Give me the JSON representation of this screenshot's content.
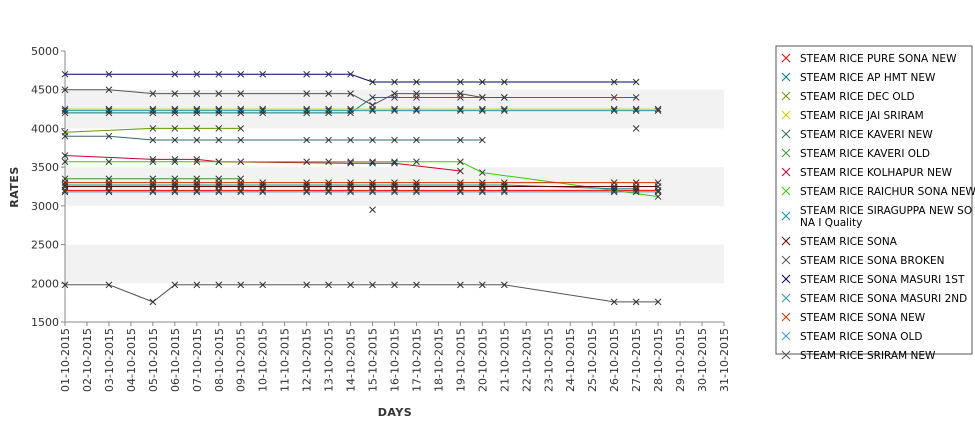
{
  "chart_data": {
    "type": "line",
    "title": "",
    "xlabel": "DAYS",
    "ylabel": "RATES",
    "ylim": [
      1500,
      5000
    ],
    "y_ticks": [
      1500,
      2000,
      2500,
      3000,
      3500,
      4000,
      4500,
      5000
    ],
    "grid": "alternating horizontal bands",
    "legend_position": "right",
    "categories": [
      "01-10-2015",
      "02-10-2015",
      "03-10-2015",
      "04-10-2015",
      "05-10-2015",
      "06-10-2015",
      "07-10-2015",
      "08-10-2015",
      "09-10-2015",
      "10-10-2015",
      "11-10-2015",
      "12-10-2015",
      "13-10-2015",
      "14-10-2015",
      "15-10-2015",
      "16-10-2015",
      "17-10-2015",
      "18-10-2015",
      "19-10-2015",
      "20-10-2015",
      "21-10-2015",
      "22-10-2015",
      "23-10-2015",
      "24-10-2015",
      "25-10-2015",
      "26-10-2015",
      "27-10-2015",
      "28-10-2015",
      "29-10-2015",
      "30-10-2015",
      "31-10-2015"
    ],
    "series": [
      {
        "name": " STEAM RICE PURE SONA NEW",
        "color": "#ff0000",
        "points": [
          [
            0,
            3200
          ],
          [
            2,
            3200
          ],
          [
            4,
            3200
          ],
          [
            5,
            3200
          ],
          [
            6,
            3200
          ],
          [
            7,
            3200
          ],
          [
            8,
            3200
          ],
          [
            9,
            3200
          ],
          [
            11,
            3200
          ],
          [
            12,
            3200
          ],
          [
            13,
            3200
          ],
          [
            14,
            3200
          ],
          [
            15,
            3200
          ],
          [
            16,
            3200
          ],
          [
            18,
            3200
          ],
          [
            19,
            3200
          ],
          [
            20,
            3200
          ],
          [
            25,
            3200
          ],
          [
            26,
            3200
          ],
          [
            27,
            3200
          ]
        ]
      },
      {
        "name": "STEAM RICE AP HMT NEW",
        "color": "#008080",
        "points": [
          [
            0,
            4200
          ],
          [
            2,
            4200
          ],
          [
            4,
            4200
          ],
          [
            5,
            4200
          ],
          [
            6,
            4200
          ],
          [
            7,
            4200
          ],
          [
            8,
            4200
          ],
          [
            9,
            4200
          ],
          [
            11,
            4200
          ],
          [
            12,
            4200
          ],
          [
            13,
            4200
          ],
          [
            14,
            4400
          ],
          [
            15,
            4400
          ],
          [
            16,
            4400
          ],
          [
            18,
            4400
          ],
          [
            19,
            4400
          ],
          [
            20,
            4400
          ],
          [
            25,
            4400
          ],
          [
            26,
            4400
          ]
        ]
      },
      {
        "name": "STEAM RICE DEC OLD",
        "color": "#669900",
        "points": [
          [
            0,
            3950
          ],
          [
            4,
            4000
          ],
          [
            5,
            4000
          ],
          [
            6,
            4000
          ],
          [
            7,
            4000
          ],
          [
            8,
            4000
          ]
        ]
      },
      {
        "name": "STEAM RICE JAI SRIRAM",
        "color": "#cccc00",
        "points": [
          [
            0,
            4250
          ],
          [
            2,
            4250
          ],
          [
            4,
            4250
          ],
          [
            5,
            4250
          ],
          [
            6,
            4250
          ],
          [
            7,
            4250
          ],
          [
            8,
            4250
          ],
          [
            9,
            4250
          ],
          [
            11,
            4250
          ],
          [
            12,
            4250
          ],
          [
            13,
            4250
          ],
          [
            14,
            4250
          ],
          [
            15,
            4250
          ],
          [
            16,
            4250
          ],
          [
            18,
            4250
          ],
          [
            19,
            4250
          ],
          [
            20,
            4250
          ],
          [
            25,
            4250
          ],
          [
            26,
            4250
          ],
          [
            27,
            4250
          ]
        ]
      },
      {
        "name": "STEAM RICE KAVERI NEW",
        "color": "#336666",
        "points": [
          [
            0,
            3900
          ],
          [
            2,
            3900
          ],
          [
            4,
            3850
          ],
          [
            5,
            3850
          ],
          [
            6,
            3850
          ],
          [
            7,
            3850
          ],
          [
            8,
            3850
          ],
          [
            11,
            3850
          ],
          [
            12,
            3850
          ],
          [
            13,
            3850
          ],
          [
            14,
            3850
          ],
          [
            15,
            3850
          ],
          [
            16,
            3850
          ],
          [
            18,
            3850
          ],
          [
            19,
            3850
          ]
        ]
      },
      {
        "name": "STEAM RICE KAVERI OLD",
        "color": "#339933",
        "points": [
          [
            0,
            3350
          ],
          [
            2,
            3350
          ],
          [
            4,
            3350
          ],
          [
            5,
            3350
          ],
          [
            6,
            3350
          ],
          [
            7,
            3350
          ],
          [
            8,
            3350
          ]
        ]
      },
      {
        "name": "STEAM RICE KOLHAPUR NEW",
        "color": "#cc0033",
        "points": [
          [
            0,
            3650
          ],
          [
            4,
            3600
          ],
          [
            5,
            3600
          ],
          [
            6,
            3600
          ],
          [
            7,
            3570
          ],
          [
            13,
            3550
          ],
          [
            14,
            3550
          ],
          [
            15,
            3550
          ],
          [
            18,
            3450
          ]
        ]
      },
      {
        "name": "STEAM RICE RAICHUR SONA NEW",
        "color": "#33cc00",
        "points": [
          [
            0,
            3570
          ],
          [
            2,
            3570
          ],
          [
            4,
            3570
          ],
          [
            5,
            3570
          ],
          [
            6,
            3570
          ],
          [
            7,
            3570
          ],
          [
            8,
            3570
          ],
          [
            11,
            3570
          ],
          [
            12,
            3570
          ],
          [
            13,
            3570
          ],
          [
            14,
            3570
          ],
          [
            15,
            3570
          ],
          [
            16,
            3570
          ],
          [
            18,
            3570
          ],
          [
            19,
            3430
          ],
          [
            25,
            3200
          ],
          [
            27,
            3120
          ]
        ]
      },
      {
        "name": "STEAM RICE SIRAGUPPA NEW SONA I Quality",
        "color": "#009999",
        "points": [
          [
            0,
            3270
          ],
          [
            2,
            3270
          ],
          [
            4,
            3270
          ],
          [
            5,
            3270
          ],
          [
            6,
            3270
          ],
          [
            7,
            3270
          ],
          [
            8,
            3270
          ],
          [
            9,
            3270
          ],
          [
            11,
            3270
          ],
          [
            12,
            3270
          ],
          [
            13,
            3270
          ],
          [
            14,
            3270
          ],
          [
            15,
            3270
          ],
          [
            16,
            3270
          ],
          [
            18,
            3270
          ],
          [
            19,
            3270
          ],
          [
            20,
            3270
          ],
          [
            25,
            3220
          ],
          [
            26,
            3220
          ]
        ]
      },
      {
        "name": "STEAM RICE SONA",
        "color": "#660000",
        "points": [
          [
            0,
            3250
          ],
          [
            2,
            3250
          ],
          [
            4,
            3250
          ],
          [
            5,
            3250
          ],
          [
            6,
            3250
          ],
          [
            7,
            3250
          ],
          [
            8,
            3250
          ],
          [
            9,
            3250
          ],
          [
            11,
            3250
          ],
          [
            12,
            3250
          ],
          [
            13,
            3250
          ],
          [
            14,
            3250
          ],
          [
            15,
            3250
          ],
          [
            16,
            3250
          ],
          [
            18,
            3250
          ],
          [
            19,
            3250
          ],
          [
            20,
            3250
          ],
          [
            25,
            3250
          ],
          [
            26,
            3250
          ],
          [
            27,
            3250
          ]
        ]
      },
      {
        "name": "STEAM RICE SONA BROKEN",
        "color": "#555555",
        "points": [
          [
            0,
            4500
          ],
          [
            2,
            4500
          ],
          [
            4,
            4450
          ],
          [
            5,
            4450
          ],
          [
            6,
            4450
          ],
          [
            7,
            4450
          ],
          [
            8,
            4450
          ],
          [
            11,
            4450
          ],
          [
            12,
            4450
          ],
          [
            13,
            4450
          ],
          [
            14,
            4300
          ],
          [
            15,
            4450
          ],
          [
            16,
            4450
          ],
          [
            18,
            4450
          ],
          [
            19,
            4400
          ],
          [
            20,
            4400
          ]
        ]
      },
      {
        "name": "STEAM RICE SONA MASURI 1ST",
        "color": "#000066",
        "points": [
          [
            0,
            4700
          ],
          [
            2,
            4700
          ],
          [
            5,
            4700
          ],
          [
            6,
            4700
          ],
          [
            7,
            4700
          ],
          [
            8,
            4700
          ],
          [
            9,
            4700
          ],
          [
            11,
            4700
          ],
          [
            12,
            4700
          ],
          [
            13,
            4700
          ],
          [
            14,
            4600
          ],
          [
            15,
            4600
          ],
          [
            16,
            4600
          ],
          [
            18,
            4600
          ],
          [
            19,
            4600
          ],
          [
            20,
            4600
          ],
          [
            25,
            4600
          ],
          [
            26,
            4600
          ]
        ]
      },
      {
        "name": "STEAM RICE SONA MASURI 2ND",
        "color": "#339999",
        "points": [
          [
            0,
            4230
          ],
          [
            2,
            4230
          ],
          [
            4,
            4230
          ],
          [
            5,
            4230
          ],
          [
            6,
            4230
          ],
          [
            7,
            4230
          ],
          [
            8,
            4230
          ],
          [
            9,
            4230
          ],
          [
            11,
            4230
          ],
          [
            12,
            4230
          ],
          [
            13,
            4230
          ],
          [
            14,
            4230
          ],
          [
            15,
            4230
          ],
          [
            16,
            4230
          ],
          [
            18,
            4230
          ],
          [
            19,
            4230
          ],
          [
            20,
            4230
          ],
          [
            25,
            4230
          ],
          [
            26,
            4230
          ],
          [
            27,
            4230
          ]
        ]
      },
      {
        "name": "STEAM RICE SONA NEW",
        "color": "#cc3300",
        "points": [
          [
            0,
            3300
          ],
          [
            2,
            3300
          ],
          [
            4,
            3300
          ],
          [
            5,
            3300
          ],
          [
            6,
            3300
          ],
          [
            7,
            3300
          ],
          [
            8,
            3300
          ],
          [
            9,
            3300
          ],
          [
            11,
            3300
          ],
          [
            12,
            3300
          ],
          [
            13,
            3300
          ],
          [
            14,
            3300
          ],
          [
            15,
            3300
          ],
          [
            16,
            3300
          ],
          [
            18,
            3300
          ],
          [
            19,
            3300
          ],
          [
            20,
            3300
          ],
          [
            25,
            3300
          ],
          [
            26,
            3300
          ],
          [
            27,
            3300
          ]
        ]
      },
      {
        "name": "STEAM RICE SONA OLD",
        "color": "#3399cc",
        "points": [
          [
            0,
            3180
          ],
          [
            2,
            3180
          ],
          [
            4,
            3180
          ],
          [
            5,
            3180
          ],
          [
            6,
            3180
          ],
          [
            7,
            3180
          ],
          [
            8,
            3180
          ],
          [
            9,
            3180
          ],
          [
            11,
            3180
          ],
          [
            12,
            3180
          ],
          [
            13,
            3180
          ],
          [
            14,
            3180
          ],
          [
            15,
            3180
          ],
          [
            16,
            3180
          ],
          [
            18,
            3180
          ],
          [
            19,
            3180
          ],
          [
            20,
            3180
          ],
          [
            25,
            3180
          ],
          [
            26,
            3180
          ],
          [
            27,
            3180
          ],
          [
            14,
            2950
          ],
          [
            26,
            4000
          ]
        ]
      },
      {
        "name": "STEAM RICE SRIRAM NEW",
        "color": "#555555",
        "points": [
          [
            0,
            1980
          ],
          [
            2,
            1980
          ],
          [
            4,
            1760
          ],
          [
            5,
            1980
          ],
          [
            6,
            1980
          ],
          [
            7,
            1980
          ],
          [
            8,
            1980
          ],
          [
            9,
            1980
          ],
          [
            11,
            1980
          ],
          [
            12,
            1980
          ],
          [
            13,
            1980
          ],
          [
            14,
            1980
          ],
          [
            15,
            1980
          ],
          [
            16,
            1980
          ],
          [
            18,
            1980
          ],
          [
            19,
            1980
          ],
          [
            20,
            1980
          ],
          [
            25,
            1760
          ],
          [
            26,
            1760
          ],
          [
            27,
            1760
          ]
        ]
      }
    ]
  }
}
